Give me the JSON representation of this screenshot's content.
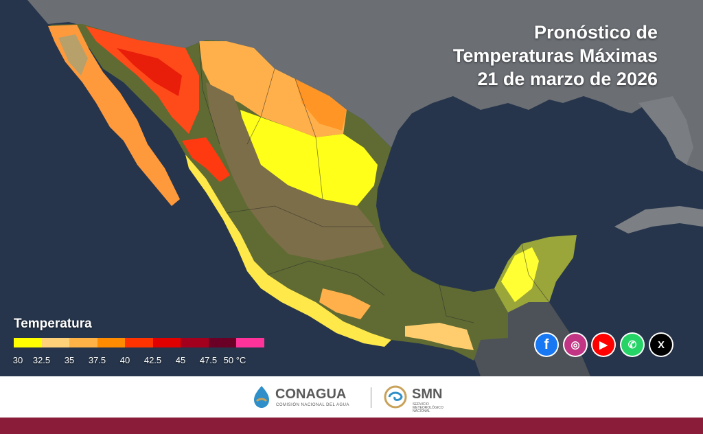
{
  "title": {
    "line1": "Pronóstico de",
    "line2": "Temperaturas Máximas",
    "line3": "21 de marzo de 2026"
  },
  "legend": {
    "title": "Temperatura",
    "ticks": [
      "30",
      "32.5",
      "35",
      "37.5",
      "40",
      "42.5",
      "45",
      "47.5",
      "50 °C"
    ],
    "colors": [
      "#ffff00",
      "#ffd27a",
      "#ffb347",
      "#ff8c00",
      "#ff3300",
      "#e00000",
      "#a3001e",
      "#6b0026",
      "#ff3399"
    ]
  },
  "social": [
    {
      "name": "facebook",
      "glyph": "f",
      "color": "#1877f2"
    },
    {
      "name": "instagram",
      "glyph": "◎",
      "color": "#c13584"
    },
    {
      "name": "youtube",
      "glyph": "▶",
      "color": "#ff0000"
    },
    {
      "name": "whatsapp",
      "glyph": "✆",
      "color": "#25d366"
    },
    {
      "name": "x",
      "glyph": "X",
      "color": "#000000"
    }
  ],
  "footer": {
    "conagua_name": "CONAGUA",
    "conagua_sub": "COMISIÓN NACIONAL DEL AGUA",
    "smn_name": "SMN",
    "smn_sub1": "SERVICIO",
    "smn_sub2": "METEOROLÓGICO",
    "smn_sub3": "NACIONAL",
    "band_color": "#8a1c3a"
  }
}
